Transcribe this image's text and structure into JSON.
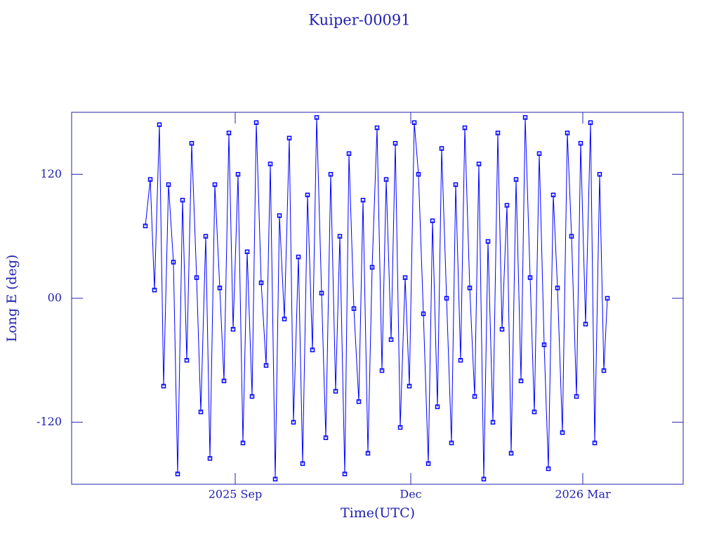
{
  "chart_data": {
    "type": "line",
    "title": "Kuiper-00091",
    "x_label": "Time(UTC)",
    "y_label": "Long E (deg)",
    "xlim": [
      2025.434,
      2026.305
    ],
    "ylim": [
      -180,
      180
    ],
    "xticks": [
      {
        "value": 2025.667,
        "label": "2025 Sep"
      },
      {
        "value": 2025.917,
        "label": "Dec"
      },
      {
        "value": 2026.162,
        "label": "2026 Mar"
      }
    ],
    "yticks": [
      -120,
      {
        "value": 0,
        "label": "00"
      },
      120
    ],
    "grid": false,
    "marker": "square",
    "series": [
      {
        "name": "Kuiper-00091",
        "color": "#0000ff",
        "x": [
          2025.539,
          2025.546,
          2025.552,
          2025.559,
          2025.565,
          2025.572,
          2025.579,
          2025.585,
          2025.592,
          2025.598,
          2025.605,
          2025.612,
          2025.618,
          2025.625,
          2025.631,
          2025.638,
          2025.645,
          2025.651,
          2025.658,
          2025.664,
          2025.671,
          2025.678,
          2025.684,
          2025.691,
          2025.697,
          2025.704,
          2025.711,
          2025.717,
          2025.724,
          2025.73,
          2025.737,
          2025.744,
          2025.75,
          2025.757,
          2025.763,
          2025.77,
          2025.777,
          2025.783,
          2025.79,
          2025.796,
          2025.803,
          2025.81,
          2025.816,
          2025.823,
          2025.829,
          2025.836,
          2025.843,
          2025.849,
          2025.856,
          2025.862,
          2025.869,
          2025.876,
          2025.882,
          2025.889,
          2025.895,
          2025.902,
          2025.909,
          2025.915,
          2025.922,
          2025.928,
          2025.935,
          2025.942,
          2025.948,
          2025.955,
          2025.961,
          2025.968,
          2025.975,
          2025.981,
          2025.988,
          2025.994,
          2026.001,
          2026.008,
          2026.014,
          2026.021,
          2026.027,
          2026.034,
          2026.041,
          2026.047,
          2026.054,
          2026.06,
          2026.067,
          2026.074,
          2026.08,
          2026.087,
          2026.093,
          2026.1,
          2026.107,
          2026.113,
          2026.12,
          2026.126,
          2026.133,
          2026.14,
          2026.146,
          2026.153,
          2026.159,
          2026.166,
          2026.173,
          2026.179,
          2026.186,
          2026.192,
          2026.197
        ],
        "values": [
          70,
          115,
          8,
          168,
          -85,
          110,
          35,
          -170,
          95,
          -60,
          150,
          20,
          -110,
          60,
          -155,
          110,
          10,
          -80,
          160,
          -30,
          120,
          -140,
          45,
          -95,
          170,
          15,
          -65,
          130,
          -175,
          80,
          -20,
          155,
          -120,
          40,
          -160,
          100,
          -50,
          175,
          5,
          -135,
          120,
          -90,
          60,
          -170,
          140,
          -10,
          -100,
          95,
          -150,
          30,
          165,
          -70,
          115,
          -40,
          150,
          -125,
          20,
          -85,
          170,
          120,
          -15,
          -160,
          75,
          -105,
          145,
          0,
          -140,
          110,
          -60,
          165,
          10,
          -95,
          130,
          -175,
          55,
          -120,
          160,
          -30,
          90,
          -150,
          115,
          -80,
          175,
          20,
          -110,
          140,
          -45,
          -165,
          100,
          10,
          -130,
          160,
          60,
          -95,
          150,
          -25,
          170,
          -140,
          120,
          -70,
          0
        ]
      }
    ]
  }
}
